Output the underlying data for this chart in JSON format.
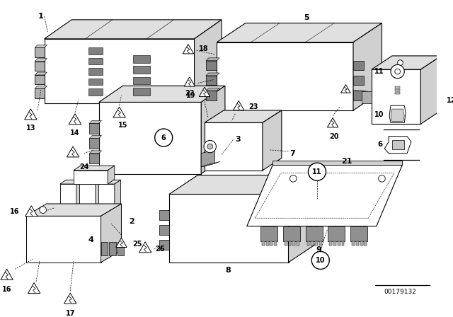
{
  "bg_color": "#ffffff",
  "fig_width": 6.4,
  "fig_height": 4.48,
  "dpi": 100,
  "part_number": "00179132"
}
